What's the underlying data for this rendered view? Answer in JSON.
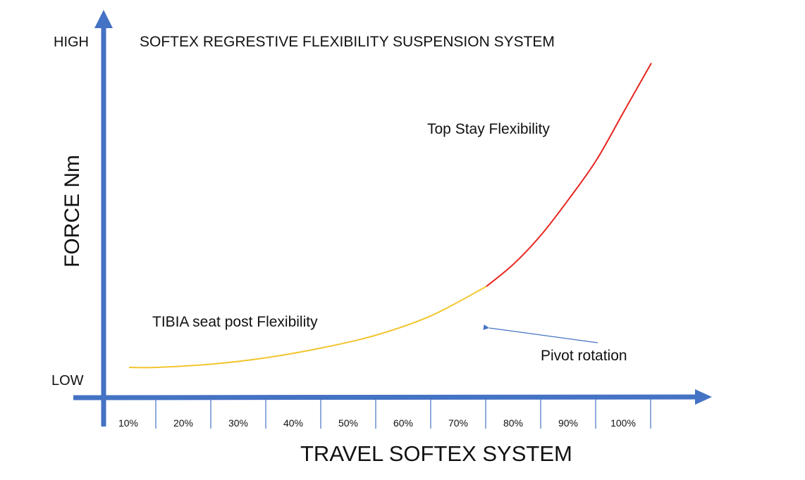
{
  "chart_data": {
    "type": "line",
    "title": "SOFTEX REGRESTIVE FLEXIBILITY SUSPENSION SYSTEM",
    "xlabel": "TRAVEL SOFTEX SYSTEM",
    "ylabel": "FORCE Nm",
    "y_tick_labels": [
      "LOW",
      "HIGH"
    ],
    "categories": [
      "10%",
      "20%",
      "30%",
      "40%",
      "50%",
      "60%",
      "70%",
      "80%",
      "90%",
      "100%"
    ],
    "ylim": [
      0,
      100
    ],
    "grid": false,
    "series": [
      {
        "name": "TIBIA seat post Flexibility",
        "color": "#f2c52e",
        "x": [
          0.5,
          1,
          2,
          3,
          4,
          5,
          6,
          7
        ],
        "y": [
          5,
          5,
          6,
          8,
          11,
          15,
          21,
          30
        ]
      },
      {
        "name": "Top Stay Flexibility",
        "color": "#e8251f",
        "x": [
          7,
          7.5,
          8,
          8.5,
          9,
          9.5,
          10
        ],
        "y": [
          30,
          37,
          46,
          57,
          69,
          84,
          99
        ]
      }
    ],
    "annotations": [
      {
        "text": "Top Stay Flexibility"
      },
      {
        "text": "TIBIA seat post Flexibility"
      },
      {
        "text": "Pivot rotation",
        "points_to": {
          "x": 7,
          "y": 30
        }
      }
    ],
    "colors": {
      "axis": "#4472c4",
      "tick": "#4472c4",
      "arrow": "#4472c4"
    }
  }
}
